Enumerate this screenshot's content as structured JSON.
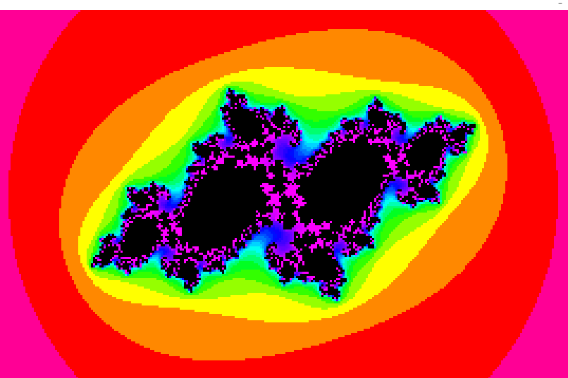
{
  "window": {
    "minimize_label": "–"
  }
}
